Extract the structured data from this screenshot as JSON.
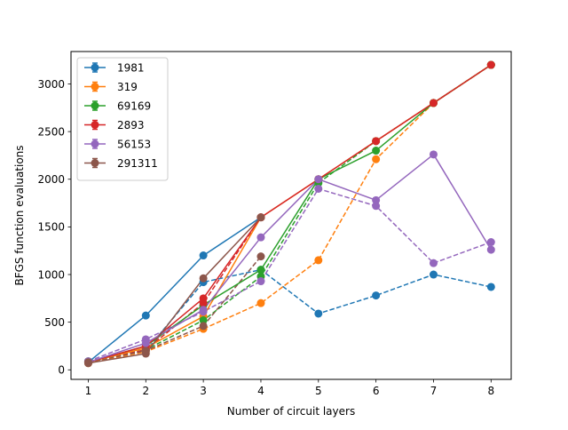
{
  "chart_data": {
    "type": "line",
    "xlabel": "Number of circuit layers",
    "ylabel": "BFGS function evaluations",
    "xlim": [
      0.7,
      8.35
    ],
    "ylim": [
      -100,
      3340
    ],
    "x_ticks": [
      1,
      2,
      3,
      4,
      5,
      6,
      7,
      8
    ],
    "y_ticks": [
      0,
      500,
      1000,
      1500,
      2000,
      2500,
      3000
    ],
    "legend_placement": "top-left",
    "grid": false,
    "series": [
      {
        "name": "1981",
        "color": "#1f77b4",
        "x": [
          1,
          2,
          3,
          4
        ],
        "values": [
          80,
          570,
          1200,
          1600
        ],
        "dashed_x": [
          1,
          2,
          3,
          4,
          5,
          6,
          7,
          8
        ],
        "dashed_values": [
          80,
          200,
          920,
          1050,
          590,
          780,
          1000,
          870
        ]
      },
      {
        "name": "319",
        "color": "#ff7f0e",
        "x": [
          1,
          2,
          3,
          4,
          5,
          6,
          7,
          8
        ],
        "values": [
          80,
          230,
          560,
          1600,
          2000,
          2400,
          2800,
          3200
        ],
        "dashed_x": [
          1,
          2,
          3,
          4,
          5,
          6,
          7,
          8
        ],
        "dashed_values": [
          70,
          190,
          430,
          700,
          1150,
          2210,
          2800,
          3200
        ]
      },
      {
        "name": "69169",
        "color": "#2ca02c",
        "x": [
          1,
          2,
          3,
          4,
          5,
          6,
          7,
          8
        ],
        "values": [
          80,
          250,
          680,
          1050,
          2000,
          2300,
          2800,
          3200
        ],
        "dashed_x": [
          1,
          2,
          3,
          4,
          5,
          6,
          7,
          8
        ],
        "dashed_values": [
          90,
          210,
          520,
          980,
          1960,
          2400,
          2800,
          3200
        ]
      },
      {
        "name": "2893",
        "color": "#d62728",
        "x": [
          1,
          2,
          3,
          4,
          5,
          6,
          7,
          8
        ],
        "values": [
          80,
          250,
          750,
          1600,
          2000,
          2400,
          2800,
          3200
        ],
        "dashed_x": [
          1,
          2,
          3,
          4
        ],
        "dashed_values": [
          80,
          210,
          700,
          1600
        ]
      },
      {
        "name": "56153",
        "color": "#9467bd",
        "x": [
          1,
          2,
          3,
          4,
          5,
          6,
          7,
          8
        ],
        "values": [
          80,
          280,
          630,
          1390,
          2000,
          1780,
          2260,
          1260
        ],
        "dashed_x": [
          1,
          2,
          3,
          4,
          5,
          6,
          7,
          8
        ],
        "dashed_values": [
          90,
          320,
          610,
          930,
          1900,
          1720,
          1120,
          1340
        ]
      },
      {
        "name": "291311",
        "color": "#8c564b",
        "x": [
          1,
          2,
          3,
          4
        ],
        "values": [
          70,
          170,
          960,
          1600
        ],
        "dashed_x": [
          1,
          2,
          3,
          4
        ],
        "dashed_values": [
          80,
          200,
          460,
          1190
        ]
      }
    ]
  }
}
